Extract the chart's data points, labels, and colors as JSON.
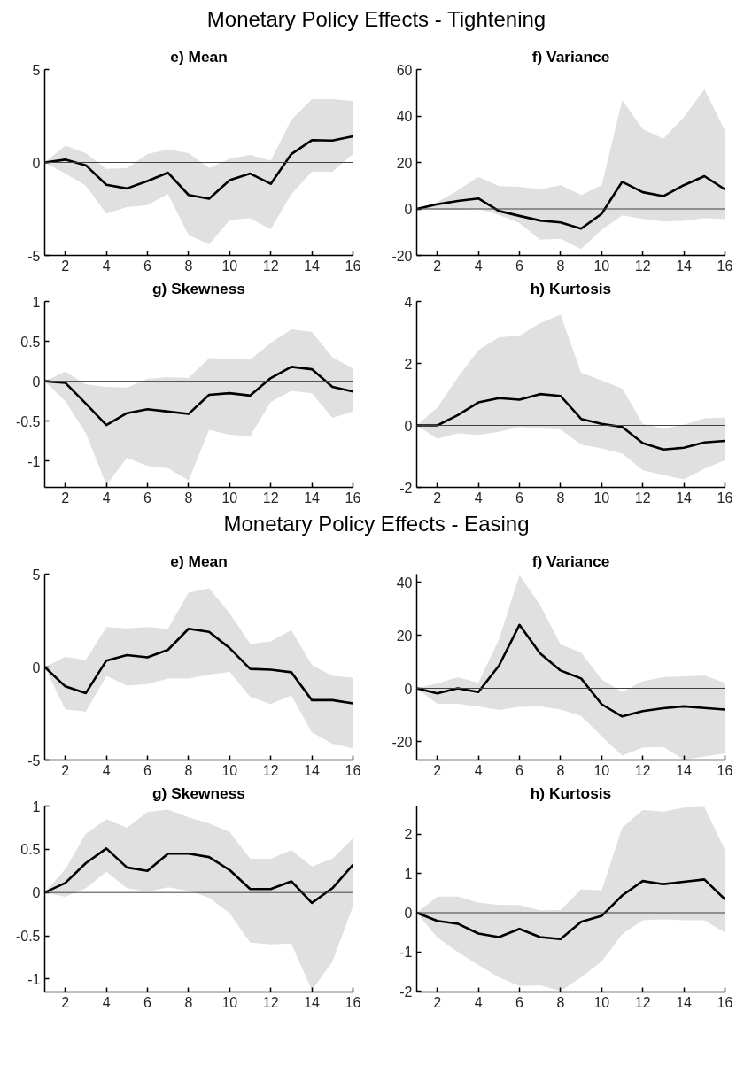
{
  "chart_data": [
    {
      "type": "line",
      "title": "e) Mean",
      "annotations": [
        "Monetary Policy Effects - Tightening"
      ],
      "x": [
        1,
        2,
        3,
        4,
        5,
        6,
        7,
        8,
        9,
        10,
        11,
        12,
        13,
        14,
        15,
        16
      ],
      "xlim": [
        1,
        16
      ],
      "xticks": [
        2,
        4,
        6,
        8,
        10,
        12,
        14,
        16
      ],
      "ylim": [
        -5,
        5
      ],
      "yticks": [
        -5,
        0,
        5
      ],
      "grid": false,
      "series": [
        {
          "color": "#000000",
          "values": [
            0,
            0.15,
            -0.15,
            -1.2,
            -1.4,
            -1.0,
            -0.55,
            -1.75,
            -1.95,
            -0.95,
            -0.6,
            -1.15,
            0.45,
            1.2,
            1.18,
            1.4
          ],
          "lower": [
            0,
            -0.6,
            -1.25,
            -2.75,
            -2.4,
            -2.3,
            -1.7,
            -3.9,
            -4.4,
            -3.1,
            -3.0,
            -3.6,
            -1.7,
            -0.5,
            -0.5,
            0.45
          ],
          "upper": [
            0,
            0.9,
            0.5,
            -0.35,
            -0.3,
            0.45,
            0.7,
            0.5,
            -0.3,
            0.2,
            0.4,
            0.1,
            2.3,
            3.4,
            3.4,
            3.3
          ]
        }
      ],
      "ref_lines": [
        {
          "axis": "y",
          "value": 0,
          "color": "#404040"
        }
      ]
    },
    {
      "type": "line",
      "title": "f) Variance",
      "x": [
        1,
        2,
        3,
        4,
        5,
        6,
        7,
        8,
        9,
        10,
        11,
        12,
        13,
        14,
        15,
        16
      ],
      "xlim": [
        1,
        16
      ],
      "xticks": [
        2,
        4,
        6,
        8,
        10,
        12,
        14,
        16
      ],
      "ylim": [
        -20,
        60
      ],
      "yticks": [
        -20,
        0,
        20,
        40,
        60
      ],
      "grid": false,
      "series": [
        {
          "color": "#000000",
          "values": [
            0,
            2,
            3.4,
            4.5,
            -0.9,
            -3,
            -5,
            -5.8,
            -8.5,
            -2.1,
            11.7,
            7.2,
            5.5,
            10.2,
            14.1,
            8.4
          ],
          "lower": [
            0,
            -0.4,
            -0.4,
            0,
            -2.6,
            -6.1,
            -13.2,
            -12.9,
            -17.2,
            -9,
            -2.8,
            -4.3,
            -5.4,
            -5.1,
            -4,
            -4.4
          ],
          "upper": [
            0,
            3,
            8,
            13.8,
            9.8,
            9.5,
            8.4,
            10.2,
            6,
            10.2,
            46.8,
            34.4,
            30.2,
            39.4,
            51.5,
            33.7
          ]
        }
      ],
      "ref_lines": [
        {
          "axis": "y",
          "value": 0,
          "color": "#404040"
        }
      ]
    },
    {
      "type": "line",
      "title": "g) Skewness",
      "x": [
        1,
        2,
        3,
        4,
        5,
        6,
        7,
        8,
        9,
        10,
        11,
        12,
        13,
        14,
        15,
        16
      ],
      "xlim": [
        1,
        16
      ],
      "xticks": [
        2,
        4,
        6,
        8,
        10,
        12,
        14,
        16
      ],
      "ylim": [
        -1.33,
        1
      ],
      "yticks": [
        -1,
        -0.5,
        0,
        0.5,
        1
      ],
      "grid": false,
      "series": [
        {
          "color": "#000000",
          "values": [
            0,
            -0.02,
            -0.28,
            -0.55,
            -0.4,
            -0.35,
            -0.38,
            -0.41,
            -0.17,
            -0.15,
            -0.18,
            0.04,
            0.18,
            0.15,
            -0.07,
            -0.13
          ],
          "lower": [
            0,
            -0.25,
            -0.65,
            -1.3,
            -0.96,
            -1.06,
            -1.09,
            -1.24,
            -0.61,
            -0.67,
            -0.69,
            -0.26,
            -0.12,
            -0.15,
            -0.46,
            -0.38
          ],
          "upper": [
            0,
            0.12,
            -0.04,
            -0.07,
            -0.08,
            0.03,
            0.05,
            0.04,
            0.29,
            0.28,
            0.27,
            0.48,
            0.65,
            0.62,
            0.3,
            0.16
          ]
        }
      ],
      "ref_lines": [
        {
          "axis": "y",
          "value": 0,
          "color": "#404040"
        }
      ]
    },
    {
      "type": "line",
      "title": "h) Kurtosis",
      "x": [
        1,
        2,
        3,
        4,
        5,
        6,
        7,
        8,
        9,
        10,
        11,
        12,
        13,
        14,
        15,
        16
      ],
      "xlim": [
        1,
        16
      ],
      "xticks": [
        2,
        4,
        6,
        8,
        10,
        12,
        14,
        16
      ],
      "ylim": [
        -2,
        4
      ],
      "yticks": [
        -2,
        0,
        2,
        4
      ],
      "grid": false,
      "series": [
        {
          "color": "#000000",
          "values": [
            0,
            0,
            0.33,
            0.74,
            0.88,
            0.83,
            1.01,
            0.95,
            0.21,
            0.05,
            -0.05,
            -0.57,
            -0.78,
            -0.72,
            -0.55,
            -0.5
          ],
          "lower": [
            0,
            -0.43,
            -0.26,
            -0.31,
            -0.21,
            -0.05,
            -0.1,
            -0.13,
            -0.62,
            -0.74,
            -0.91,
            -1.45,
            -1.6,
            -1.74,
            -1.4,
            -1.12
          ],
          "upper": [
            0,
            0.57,
            1.55,
            2.43,
            2.84,
            2.89,
            3.3,
            3.57,
            1.7,
            1.45,
            1.19,
            0.05,
            -0.1,
            0.02,
            0.23,
            0.26
          ]
        }
      ],
      "ref_lines": [
        {
          "axis": "y",
          "value": 0,
          "color": "#404040"
        }
      ]
    },
    {
      "type": "line",
      "title": "e) Mean",
      "annotations": [
        "Monetary Policy Effects - Easing"
      ],
      "x": [
        1,
        2,
        3,
        4,
        5,
        6,
        7,
        8,
        9,
        10,
        11,
        12,
        13,
        14,
        15,
        16
      ],
      "xlim": [
        1,
        16
      ],
      "xticks": [
        2,
        4,
        6,
        8,
        10,
        12,
        14,
        16
      ],
      "ylim": [
        -5,
        5
      ],
      "yticks": [
        -5,
        0,
        5
      ],
      "grid": false,
      "series": [
        {
          "color": "#000000",
          "values": [
            0,
            -1.04,
            -1.4,
            0.35,
            0.64,
            0.52,
            0.93,
            2.06,
            1.89,
            1.02,
            -0.1,
            -0.14,
            -0.28,
            -1.78,
            -1.78,
            -1.95
          ],
          "lower": [
            0,
            -2.27,
            -2.39,
            -0.48,
            -1.0,
            -0.92,
            -0.62,
            -0.62,
            -0.4,
            -0.26,
            -1.61,
            -1.99,
            -1.52,
            -3.51,
            -4.12,
            -4.38
          ],
          "upper": [
            0,
            0.55,
            0.38,
            2.16,
            2.08,
            2.16,
            2.06,
            4.0,
            4.24,
            2.89,
            1.25,
            1.38,
            1.99,
            0.12,
            -0.48,
            -0.57
          ]
        }
      ],
      "ref_lines": [
        {
          "axis": "y",
          "value": 0,
          "color": "#404040"
        }
      ]
    },
    {
      "type": "line",
      "title": "f) Variance",
      "x": [
        1,
        2,
        3,
        4,
        5,
        6,
        7,
        8,
        9,
        10,
        11,
        12,
        13,
        14,
        15,
        16
      ],
      "xlim": [
        1,
        16
      ],
      "xticks": [
        2,
        4,
        6,
        8,
        10,
        12,
        14,
        16
      ],
      "ylim": [
        -27,
        43
      ],
      "yticks": [
        -20,
        0,
        20,
        40
      ],
      "grid": false,
      "series": [
        {
          "color": "#000000",
          "values": [
            0,
            -1.9,
            0,
            -1.4,
            8.5,
            23.9,
            13.2,
            6.7,
            3.7,
            -6,
            -10.6,
            -8.6,
            -7.5,
            -6.8,
            -7.4,
            -8
          ],
          "lower": [
            0,
            -5.8,
            -5.8,
            -6.8,
            -8.2,
            -7,
            -6.8,
            -8,
            -10.4,
            -18.1,
            -25.3,
            -22.3,
            -22.1,
            -26.8,
            -25.7,
            -24.5
          ],
          "upper": [
            0,
            1.8,
            4.2,
            2.1,
            18.3,
            42.7,
            31.4,
            16.5,
            13.5,
            3.3,
            -1.4,
            2.7,
            4.2,
            4.5,
            4.8,
            2.1
          ]
        }
      ],
      "ref_lines": [
        {
          "axis": "y",
          "value": 0,
          "color": "#404040"
        }
      ]
    },
    {
      "type": "line",
      "title": "g) Skewness",
      "x": [
        1,
        2,
        3,
        4,
        5,
        6,
        7,
        8,
        9,
        10,
        11,
        12,
        13,
        14,
        15,
        16
      ],
      "xlim": [
        1,
        16
      ],
      "xticks": [
        2,
        4,
        6,
        8,
        10,
        12,
        14,
        16
      ],
      "ylim": [
        -1.15,
        1
      ],
      "yticks": [
        -1,
        -0.5,
        0,
        0.5,
        1
      ],
      "grid": false,
      "series": [
        {
          "color": "#000000",
          "values": [
            0,
            0.11,
            0.34,
            0.51,
            0.29,
            0.25,
            0.45,
            0.45,
            0.41,
            0.26,
            0.04,
            0.04,
            0.13,
            -0.12,
            0.05,
            0.32
          ],
          "lower": [
            0,
            -0.05,
            0.05,
            0.24,
            0.05,
            0.01,
            0.06,
            0.02,
            -0.06,
            -0.24,
            -0.58,
            -0.6,
            -0.59,
            -1.13,
            -0.8,
            -0.16
          ],
          "upper": [
            0,
            0.27,
            0.68,
            0.85,
            0.75,
            0.93,
            0.96,
            0.87,
            0.8,
            0.7,
            0.39,
            0.39,
            0.49,
            0.3,
            0.39,
            0.63
          ]
        }
      ],
      "ref_lines": [
        {
          "axis": "y",
          "value": 0,
          "color": "#404040"
        }
      ]
    },
    {
      "type": "line",
      "title": "h) Kurtosis",
      "x": [
        1,
        2,
        3,
        4,
        5,
        6,
        7,
        8,
        9,
        10,
        11,
        12,
        13,
        14,
        15,
        16
      ],
      "xlim": [
        1,
        16
      ],
      "xticks": [
        2,
        4,
        6,
        8,
        10,
        12,
        14,
        16
      ],
      "ylim": [
        -2.02,
        2.72
      ],
      "yticks": [
        -2,
        -1,
        0,
        1,
        2
      ],
      "grid": false,
      "series": [
        {
          "color": "#000000",
          "values": [
            0,
            -0.21,
            -0.28,
            -0.53,
            -0.62,
            -0.41,
            -0.62,
            -0.67,
            -0.23,
            -0.08,
            0.44,
            0.81,
            0.73,
            0.79,
            0.85,
            0.34
          ],
          "lower": [
            0,
            -0.63,
            -1.0,
            -1.33,
            -1.65,
            -1.87,
            -1.85,
            -2.0,
            -1.65,
            -1.24,
            -0.55,
            -0.19,
            -0.17,
            -0.19,
            -0.19,
            -0.51
          ],
          "upper": [
            0,
            0.41,
            0.41,
            0.26,
            0.2,
            0.2,
            0.06,
            0.07,
            0.6,
            0.57,
            2.17,
            2.62,
            2.58,
            2.68,
            2.7,
            1.6
          ]
        }
      ],
      "ref_lines": [
        {
          "axis": "y",
          "value": 0,
          "color": "#404040"
        }
      ]
    }
  ]
}
